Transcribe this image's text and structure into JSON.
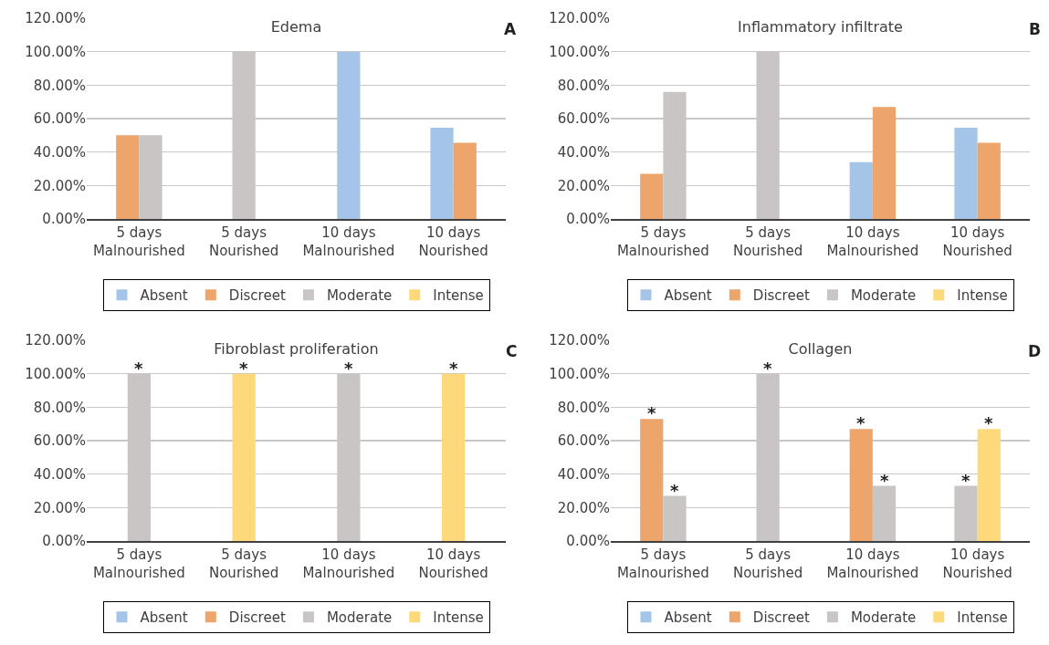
{
  "chart_data": [
    {
      "type": "bar",
      "title": "Edema",
      "annotations": [
        "A"
      ],
      "categories": [
        "5 days\nMalnourished",
        "5 days\nNourished",
        "10 days\nMalnourished",
        "10 days\nNourished"
      ],
      "series": [
        {
          "name": "Absent",
          "color": "#a5c5e8",
          "values": [
            null,
            null,
            100,
            54.5
          ]
        },
        {
          "name": "Discreet",
          "color": "#eda56c",
          "values": [
            50,
            null,
            null,
            45.5
          ]
        },
        {
          "name": "Moderate",
          "color": "#c9c5c4",
          "values": [
            50,
            100,
            null,
            null
          ]
        },
        {
          "name": "Intense",
          "color": "#fdd97b",
          "values": [
            null,
            null,
            null,
            null
          ]
        }
      ],
      "ylim": [
        0,
        120
      ],
      "yticks": [
        {
          "value": 0,
          "label": "0.00%"
        },
        {
          "value": 20,
          "label": "20.00%"
        },
        {
          "value": 40,
          "label": "40.00%"
        },
        {
          "value": 60,
          "label": "60.00%"
        },
        {
          "value": 80,
          "label": "80.00%"
        },
        {
          "value": 100,
          "label": "100.00%"
        },
        {
          "value": 120,
          "label": "120.00%"
        }
      ],
      "grid": "y",
      "legend": "bottom"
    },
    {
      "type": "bar",
      "title": "Inflammatory infiltrate",
      "annotations": [
        "B"
      ],
      "categories": [
        "5 days\nMalnourished",
        "5 days\nNourished",
        "10 days\nMalnourished",
        "10 days\nNourished"
      ],
      "series": [
        {
          "name": "Absent",
          "color": "#a5c5e8",
          "values": [
            null,
            null,
            34,
            54.5
          ]
        },
        {
          "name": "Discreet",
          "color": "#eda56c",
          "values": [
            27,
            null,
            67,
            45.5
          ]
        },
        {
          "name": "Moderate",
          "color": "#c9c5c4",
          "values": [
            76,
            100,
            null,
            null
          ]
        },
        {
          "name": "Intense",
          "color": "#fdd97b",
          "values": [
            null,
            null,
            null,
            null
          ]
        }
      ],
      "ylim": [
        0,
        120
      ],
      "yticks": [
        {
          "value": 0,
          "label": "0.00%"
        },
        {
          "value": 20,
          "label": "20.00%"
        },
        {
          "value": 40,
          "label": "40.00%"
        },
        {
          "value": 60,
          "label": "60.00%"
        },
        {
          "value": 80,
          "label": "80.00%"
        },
        {
          "value": 100,
          "label": "100.00%"
        },
        {
          "value": 120,
          "label": "120.00%"
        }
      ],
      "grid": "y",
      "legend": "bottom"
    },
    {
      "type": "bar",
      "title": "Fibroblast proliferation",
      "annotations": [
        "C",
        {
          "text": "*",
          "x": "5 days\nMalnourished",
          "y": 100
        },
        {
          "text": "*",
          "x": "5 days\nNourished",
          "y": 100
        },
        {
          "text": "*",
          "x": "10 days\nMalnourished",
          "y": 100
        },
        {
          "text": "*",
          "x": "10 days\nNourished",
          "y": 100
        }
      ],
      "categories": [
        "5 days\nMalnourished",
        "5 days\nNourished",
        "10 days\nMalnourished",
        "10 days\nNourished"
      ],
      "series": [
        {
          "name": "Absent",
          "color": "#a5c5e8",
          "values": [
            null,
            null,
            null,
            null
          ]
        },
        {
          "name": "Discreet",
          "color": "#eda56c",
          "values": [
            null,
            null,
            null,
            null
          ]
        },
        {
          "name": "Moderate",
          "color": "#c9c5c4",
          "values": [
            100,
            null,
            100,
            null
          ]
        },
        {
          "name": "Intense",
          "color": "#fdd97b",
          "values": [
            null,
            100,
            null,
            100
          ]
        }
      ],
      "ylim": [
        0,
        120
      ],
      "yticks": [
        {
          "value": 0,
          "label": "0.00%"
        },
        {
          "value": 20,
          "label": "20.00%"
        },
        {
          "value": 40,
          "label": "40.00%"
        },
        {
          "value": 60,
          "label": "60.00%"
        },
        {
          "value": 80,
          "label": "80.00%"
        },
        {
          "value": 100,
          "label": "100.00%"
        },
        {
          "value": 120,
          "label": "120.00%"
        }
      ],
      "grid": "y",
      "legend": "bottom"
    },
    {
      "type": "bar",
      "title": "Collagen",
      "annotations": [
        "D",
        {
          "text": "*",
          "x": "5 days\nMalnourished",
          "y": 73
        },
        {
          "text": "*",
          "x": "5 days\nMalnourished",
          "y": 27
        },
        {
          "text": "*",
          "x": "5 days\nNourished",
          "y": 100
        },
        {
          "text": "*",
          "x": "10 days\nMalnourished",
          "y": 67
        },
        {
          "text": "*",
          "x": "10 days\nMalnourished",
          "y": 33
        },
        {
          "text": "*",
          "x": "10 days\nNourished",
          "y": 33
        },
        {
          "text": "*",
          "x": "10 days\nNourished",
          "y": 67
        }
      ],
      "categories": [
        "5 days\nMalnourished",
        "5 days\nNourished",
        "10 days\nMalnourished",
        "10 days\nNourished"
      ],
      "series": [
        {
          "name": "Absent",
          "color": "#a5c5e8",
          "values": [
            null,
            null,
            null,
            null
          ]
        },
        {
          "name": "Discreet",
          "color": "#eda56c",
          "values": [
            73,
            null,
            67,
            null
          ]
        },
        {
          "name": "Moderate",
          "color": "#c9c5c4",
          "values": [
            27,
            100,
            33,
            33
          ]
        },
        {
          "name": "Intense",
          "color": "#fdd97b",
          "values": [
            null,
            null,
            null,
            67
          ]
        }
      ],
      "ylim": [
        0,
        120
      ],
      "yticks": [
        {
          "value": 0,
          "label": "0.00%"
        },
        {
          "value": 20,
          "label": "20.00%"
        },
        {
          "value": 40,
          "label": "40.00%"
        },
        {
          "value": 60,
          "label": "60.00%"
        },
        {
          "value": 80,
          "label": "80.00%"
        },
        {
          "value": 100,
          "label": "100.00%"
        },
        {
          "value": 120,
          "label": "120.00%"
        }
      ],
      "grid": "y",
      "legend": "bottom"
    }
  ]
}
